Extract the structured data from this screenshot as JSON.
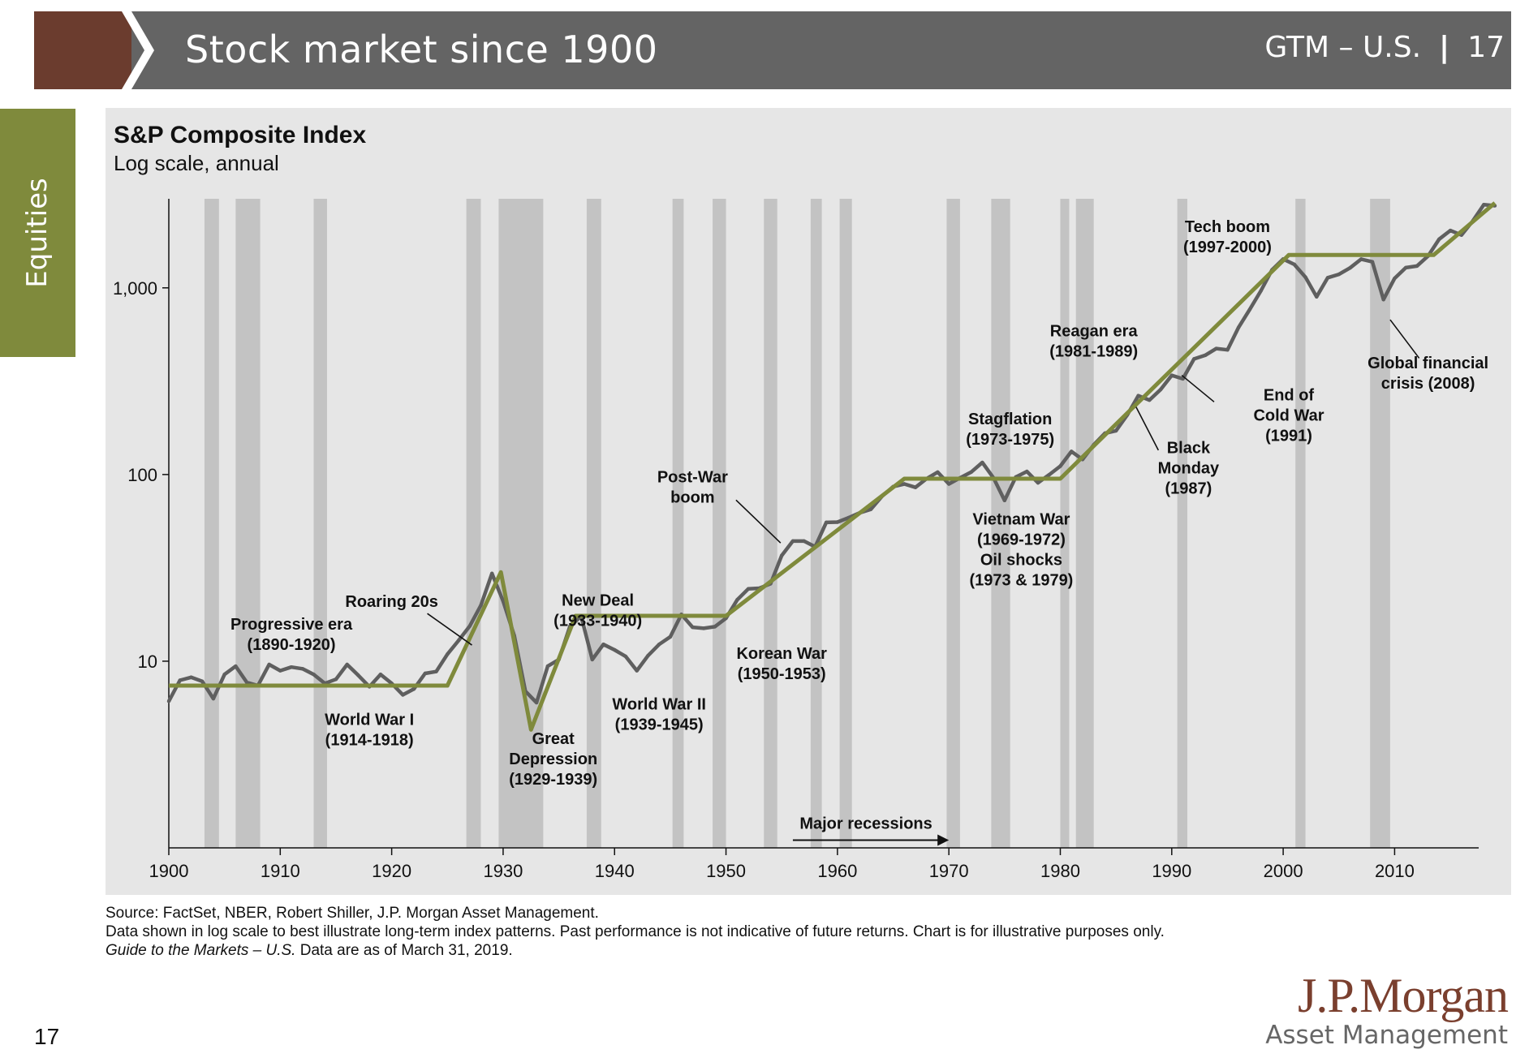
{
  "header": {
    "title": "Stock market since 1900",
    "right_label": "GTM – U.S.",
    "page_number": "17",
    "colors": {
      "brown": "#6b3c2e",
      "bar": "#646464",
      "tab": "#7f8a3c"
    }
  },
  "side_tab": {
    "label": "Equities"
  },
  "footer": {
    "source_lines": [
      "Source: FactSet, NBER, Robert Shiller, J.P. Morgan Asset Management.",
      "Data shown in log scale to best illustrate long-term index patterns. Past performance is not indicative of future returns. Chart is for illustrative purposes only."
    ],
    "guide_italic": "Guide to the Markets – U.S.",
    "guide_rest": " Data are as of March 31, 2019.",
    "page_number": "17",
    "logo_main": "J.P.Morgan",
    "logo_sub": "Asset Management"
  },
  "chart_data": {
    "type": "line",
    "title": "S&P Composite Index",
    "subtitle": "Log scale, annual",
    "y_scale": "log",
    "ylim": [
      1,
      3000
    ],
    "xlim": [
      1900,
      2019
    ],
    "x_ticks": [
      1900,
      1910,
      1920,
      1930,
      1940,
      1950,
      1960,
      1970,
      1980,
      1990,
      2000,
      2010
    ],
    "y_ticks": [
      {
        "value": 10,
        "label": "10"
      },
      {
        "value": 100,
        "label": "100"
      },
      {
        "value": 1000,
        "label": "1,000"
      }
    ],
    "colors": {
      "index": "#5f5f5f",
      "trend": "#7f8a3c",
      "recession": "#c3c3c3",
      "panel": "#e6e6e6"
    },
    "recessions": [
      [
        1903.2,
        1904.5
      ],
      [
        1906.0,
        1908.2
      ],
      [
        1913.0,
        1914.2
      ],
      [
        1926.7,
        1928.0
      ],
      [
        1929.6,
        1933.6
      ],
      [
        1937.5,
        1938.8
      ],
      [
        1945.2,
        1946.2
      ],
      [
        1948.8,
        1950.0
      ],
      [
        1953.4,
        1954.6
      ],
      [
        1957.6,
        1958.6
      ],
      [
        1960.2,
        1961.3
      ],
      [
        1969.8,
        1971.0
      ],
      [
        1973.8,
        1975.5
      ],
      [
        1980.0,
        1980.8
      ],
      [
        1981.4,
        1983.0
      ],
      [
        1990.5,
        1991.4
      ],
      [
        2001.1,
        2002.0
      ],
      [
        2007.8,
        2009.6
      ]
    ],
    "series": [
      {
        "name": "S&P Composite Index",
        "points": [
          [
            1900,
            6.1
          ],
          [
            1901,
            7.9
          ],
          [
            1902,
            8.2
          ],
          [
            1903,
            7.8
          ],
          [
            1904,
            6.3
          ],
          [
            1905,
            8.5
          ],
          [
            1906,
            9.4
          ],
          [
            1907,
            7.7
          ],
          [
            1908,
            7.4
          ],
          [
            1909,
            9.6
          ],
          [
            1910,
            8.9
          ],
          [
            1911,
            9.3
          ],
          [
            1912,
            9.1
          ],
          [
            1913,
            8.5
          ],
          [
            1914,
            7.6
          ],
          [
            1915,
            8.0
          ],
          [
            1916,
            9.6
          ],
          [
            1917,
            8.4
          ],
          [
            1918,
            7.3
          ],
          [
            1919,
            8.5
          ],
          [
            1920,
            7.6
          ],
          [
            1921,
            6.6
          ],
          [
            1922,
            7.1
          ],
          [
            1923,
            8.6
          ],
          [
            1924,
            8.8
          ],
          [
            1925,
            10.9
          ],
          [
            1926,
            12.9
          ],
          [
            1927,
            15.4
          ],
          [
            1928,
            19.9
          ],
          [
            1929,
            29.5
          ],
          [
            1930,
            21.0
          ],
          [
            1931,
            13.7
          ],
          [
            1932,
            6.9
          ],
          [
            1933,
            6.0
          ],
          [
            1934,
            9.4
          ],
          [
            1935,
            10.2
          ],
          [
            1936,
            15.4
          ],
          [
            1937,
            17.4
          ],
          [
            1938,
            10.2
          ],
          [
            1939,
            12.3
          ],
          [
            1940,
            11.5
          ],
          [
            1941,
            10.6
          ],
          [
            1942,
            8.9
          ],
          [
            1943,
            10.7
          ],
          [
            1944,
            12.3
          ],
          [
            1945,
            13.5
          ],
          [
            1946,
            17.8
          ],
          [
            1947,
            15.2
          ],
          [
            1948,
            15.0
          ],
          [
            1949,
            15.3
          ],
          [
            1950,
            17.0
          ],
          [
            1951,
            21.3
          ],
          [
            1952,
            24.4
          ],
          [
            1953,
            24.6
          ],
          [
            1954,
            26.0
          ],
          [
            1955,
            36.8
          ],
          [
            1956,
            44.0
          ],
          [
            1957,
            44.0
          ],
          [
            1958,
            41.0
          ],
          [
            1959,
            55.4
          ],
          [
            1960,
            55.6
          ],
          [
            1961,
            58.7
          ],
          [
            1962,
            62.3
          ],
          [
            1963,
            65.1
          ],
          [
            1964,
            76.4
          ],
          [
            1965,
            86.1
          ],
          [
            1966,
            89.0
          ],
          [
            1967,
            85.3
          ],
          [
            1968,
            95.0
          ],
          [
            1969,
            103.0
          ],
          [
            1970,
            89.0
          ],
          [
            1971,
            95.9
          ],
          [
            1972,
            103.0
          ],
          [
            1973,
            116.0
          ],
          [
            1974,
            96.0
          ],
          [
            1975,
            72.6
          ],
          [
            1976,
            96.9
          ],
          [
            1977,
            103.8
          ],
          [
            1978,
            90.3
          ],
          [
            1979,
            99.7
          ],
          [
            1980,
            110.9
          ],
          [
            1981,
            132.9
          ],
          [
            1982,
            120.4
          ],
          [
            1983,
            144.3
          ],
          [
            1984,
            166.4
          ],
          [
            1985,
            171.6
          ],
          [
            1986,
            208.2
          ],
          [
            1987,
            264.5
          ],
          [
            1988,
            250.5
          ],
          [
            1989,
            285.4
          ],
          [
            1990,
            339.9
          ],
          [
            1991,
            325.5
          ],
          [
            1992,
            416.1
          ],
          [
            1993,
            435.2
          ],
          [
            1994,
            472.9
          ],
          [
            1995,
            465.3
          ],
          [
            1996,
            614.4
          ],
          [
            1997,
            766.2
          ],
          [
            1998,
            963.4
          ],
          [
            1999,
            1248.8
          ],
          [
            2000,
            1425.6
          ],
          [
            2001,
            1335.6
          ],
          [
            2002,
            1140.2
          ],
          [
            2003,
            895.8
          ],
          [
            2004,
            1132.5
          ],
          [
            2005,
            1181.4
          ],
          [
            2006,
            1278.7
          ],
          [
            2007,
            1424.2
          ],
          [
            2008,
            1378.8
          ],
          [
            2009,
            865.6
          ],
          [
            2010,
            1123.6
          ],
          [
            2011,
            1282.6
          ],
          [
            2012,
            1308.9
          ],
          [
            2013,
            1480.4
          ],
          [
            2014,
            1822.4
          ],
          [
            2015,
            2028.2
          ],
          [
            2016,
            1918.6
          ],
          [
            2017,
            2275.1
          ],
          [
            2018,
            2789.8
          ],
          [
            2019,
            2754.9
          ]
        ]
      },
      {
        "name": "Trend",
        "points": [
          [
            1900,
            7.4
          ],
          [
            1925,
            7.4
          ],
          [
            1929.8,
            30.0
          ],
          [
            1932.5,
            4.3
          ],
          [
            1936.5,
            17.5
          ],
          [
            1950,
            17.5
          ],
          [
            1966,
            95
          ],
          [
            1980,
            95
          ],
          [
            2000.5,
            1500
          ],
          [
            2013.5,
            1500
          ],
          [
            2019,
            2850
          ]
        ]
      }
    ],
    "annotations": [
      {
        "lines": [
          "Progressive era",
          "(1890-1920)"
        ],
        "x": 1911,
        "y": 14.8
      },
      {
        "lines": [
          "World War I",
          "(1914-1918)"
        ],
        "x": 1918,
        "y": 4.55
      },
      {
        "lines": [
          "Roaring 20s"
        ],
        "x": 1920,
        "y": 19.5
      },
      {
        "lines": [
          "Great",
          "Depression",
          "(1929-1939)"
        ],
        "x": 1934.5,
        "y": 3.6
      },
      {
        "lines": [
          "New Deal",
          "(1933-1940)"
        ],
        "x": 1938.5,
        "y": 19.8
      },
      {
        "lines": [
          "World War II",
          "(1939-1945)"
        ],
        "x": 1944,
        "y": 5.5
      },
      {
        "lines": [
          "Post-War",
          "boom"
        ],
        "x": 1947,
        "y": 91
      },
      {
        "lines": [
          "Korean War",
          "(1950-1953)"
        ],
        "x": 1955,
        "y": 10.3
      },
      {
        "lines": [
          "Stagflation",
          "(1973-1975)"
        ],
        "x": 1975.5,
        "y": 186
      },
      {
        "lines": [
          "Vietnam War",
          "(1969-1972)",
          "Oil shocks",
          "(1973 & 1979)"
        ],
        "x": 1976.5,
        "y": 54
      },
      {
        "lines": [
          "Reagan era",
          "(1981-1989)"
        ],
        "x": 1983,
        "y": 550
      },
      {
        "lines": [
          "Tech boom",
          "(1997-2000)"
        ],
        "x": 1995,
        "y": 1990
      },
      {
        "lines": [
          "Black",
          "Monday",
          "(1987)"
        ],
        "x": 1991.5,
        "y": 130
      },
      {
        "lines": [
          "End of",
          "Cold War",
          "(1991)"
        ],
        "x": 2000.5,
        "y": 250
      },
      {
        "lines": [
          "Global financial",
          "crisis (2008)"
        ],
        "x": 2013,
        "y": 370
      }
    ],
    "callouts": [
      {
        "from": [
          1923.2,
          18
        ],
        "to": [
          1927.2,
          12.2
        ]
      },
      {
        "from": [
          1950.9,
          73
        ],
        "to": [
          1954.9,
          43
        ]
      },
      {
        "from": [
          1986.8,
          230
        ],
        "to": [
          1988.8,
          135
        ]
      },
      {
        "from": [
          1990.9,
          340
        ],
        "to": [
          1993.8,
          245
        ]
      },
      {
        "from": [
          2009.6,
          675
        ],
        "to": [
          2012.2,
          420
        ]
      }
    ],
    "recession_legend": {
      "label": "Major recessions",
      "x_from": 1956,
      "x_to": 1970,
      "y": 1.1
    }
  }
}
